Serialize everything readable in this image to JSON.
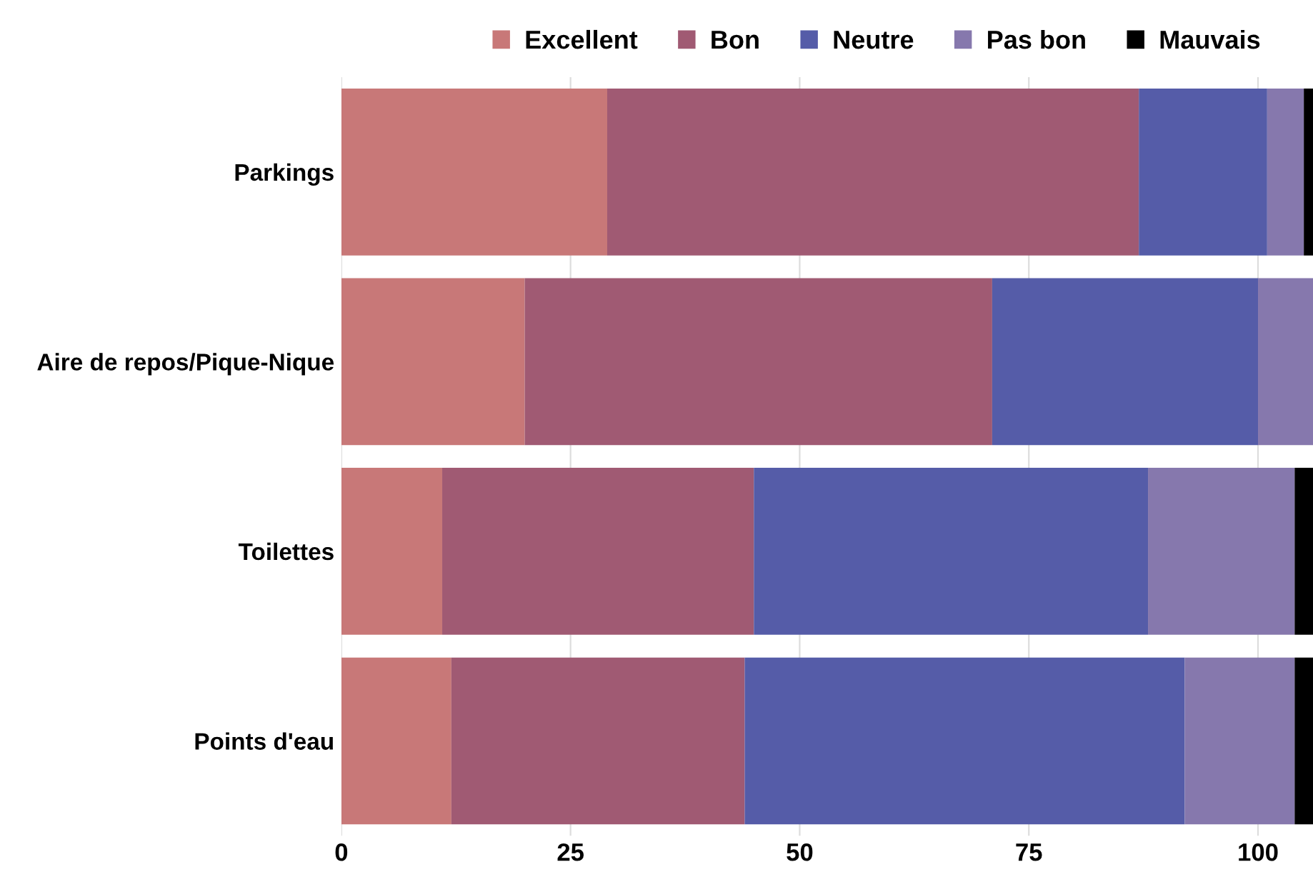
{
  "chart_data": {
    "type": "bar",
    "orientation": "horizontal",
    "stacked": true,
    "categories": [
      "Parkings",
      "Aire de repos/Pique-Nique",
      "Toilettes",
      "Points d'eau"
    ],
    "series": [
      {
        "name": "Excellent",
        "color": "#c87878",
        "values": [
          29,
          20,
          11,
          12
        ]
      },
      {
        "name": "Bon",
        "color": "#a05a73",
        "values": [
          58,
          51,
          34,
          32
        ]
      },
      {
        "name": "Neutre",
        "color": "#555ca8",
        "values": [
          14,
          29,
          43,
          48
        ]
      },
      {
        "name": "Pas bon",
        "color": "#8678ad",
        "values": [
          4,
          6,
          16,
          12
        ]
      },
      {
        "name": "Mauvais",
        "color": "#000000",
        "values": [
          1,
          0,
          2,
          2
        ]
      }
    ],
    "xlim": [
      0,
      106
    ],
    "xticks": [
      0,
      25,
      50,
      75,
      100
    ],
    "grid": "x",
    "legend": "top right"
  }
}
